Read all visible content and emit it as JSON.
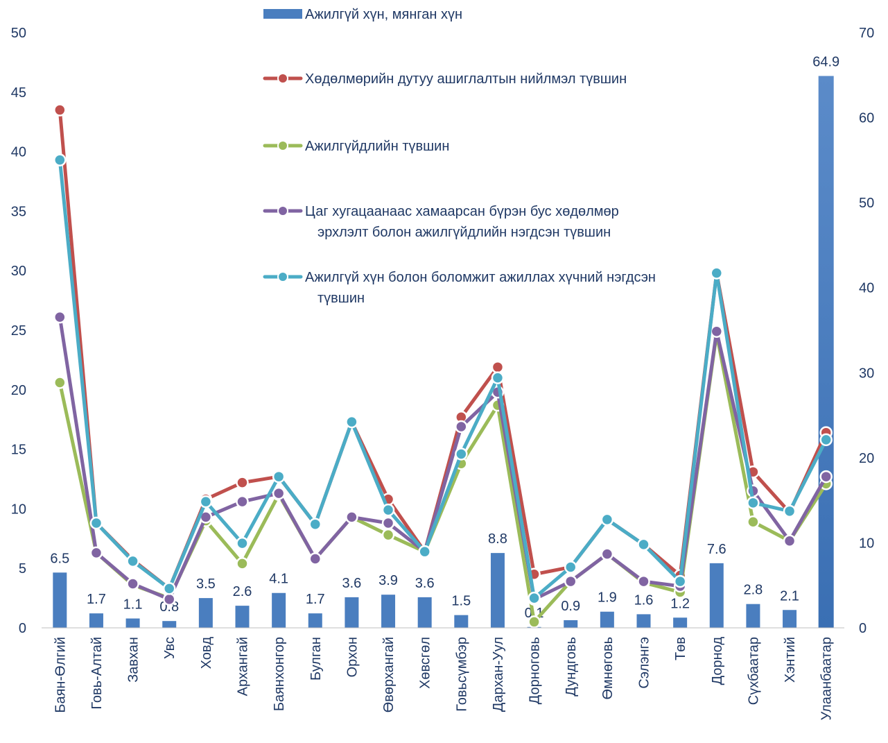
{
  "chart_data": {
    "type": "bar+line",
    "categories": [
      "Баян-Өлгий",
      "Говь-Алтай",
      "Завхан",
      "Увс",
      "Ховд",
      "Архангай",
      "Баянхонгор",
      "Булган",
      "Орхон",
      "Өвөрхангай",
      "Хөвсгөл",
      "Говьсүмбэр",
      "Дархан-Уул",
      "Дорноговь",
      "Дундговь",
      "Өмнөговь",
      "Сэлэнгэ",
      "Төв",
      "Дорнод",
      "Сүхбаатар",
      "Хэнтий",
      "Улаанбаатар"
    ],
    "left_axis": {
      "min": 0,
      "max": 50,
      "step": 5,
      "ticks": [
        "0",
        "5",
        "10",
        "15",
        "20",
        "25",
        "30",
        "35",
        "40",
        "45",
        "50"
      ]
    },
    "right_axis": {
      "min": 0,
      "max": 70,
      "step": 10,
      "ticks": [
        "0",
        "10",
        "20",
        "30",
        "40",
        "50",
        "60",
        "70"
      ]
    },
    "bar_series": {
      "name": "Ажилгүй хүн, мянган хүн",
      "axis": "right",
      "color": "#4a7ebf",
      "values": [
        6.5,
        1.7,
        1.1,
        0.8,
        3.5,
        2.6,
        4.1,
        1.7,
        3.6,
        3.9,
        3.6,
        1.5,
        8.8,
        0.1,
        0.9,
        1.9,
        1.6,
        1.2,
        7.6,
        2.8,
        2.1,
        64.9
      ],
      "labels": [
        "6.5",
        "1.7",
        "1.1",
        "0.8",
        "3.5",
        "2.6",
        "4.1",
        "1.7",
        "3.6",
        "3.9",
        "3.6",
        "1.5",
        "8.8",
        "0.1",
        "0.9",
        "1.9",
        "1.6",
        "1.2",
        "7.6",
        "2.8",
        "2.1",
        "64.9"
      ]
    },
    "line_series": [
      {
        "name": "Хөдөлмөрийн дутуу ашиглалтын нийлмэл түвшин",
        "color": "#c0504d",
        "values": [
          43.5,
          8.8,
          5.7,
          3.3,
          10.8,
          12.2,
          12.7,
          8.7,
          17.3,
          10.8,
          6.4,
          17.7,
          21.9,
          4.5,
          5.1,
          9.1,
          7.0,
          4.4,
          29.8,
          13.1,
          9.7,
          16.4
        ]
      },
      {
        "name": "Ажилгүйдлийн түвшин",
        "color": "#9bbb59",
        "values": [
          20.6,
          6.3,
          3.6,
          2.5,
          9.0,
          5.4,
          11.2,
          5.8,
          9.3,
          7.8,
          6.4,
          13.8,
          18.7,
          0.5,
          3.9,
          6.2,
          3.8,
          3.0,
          24.7,
          8.9,
          7.3,
          12.1
        ]
      },
      {
        "name": "Цаг хугацаанаас хамаарсан бүрэн бус хөдөлмөр эрхлэлт болон ажилгүйдлийн нэгдсэн түвшин",
        "color": "#8064a2",
        "values": [
          26.1,
          6.3,
          3.7,
          2.4,
          9.3,
          10.6,
          11.3,
          5.8,
          9.3,
          8.8,
          6.4,
          16.9,
          19.8,
          2.4,
          3.9,
          6.2,
          3.9,
          3.5,
          24.9,
          11.5,
          7.3,
          12.7
        ]
      },
      {
        "name": "Ажилгүй хүн болон боломжит ажиллах хүчний нэгдсэн түвшин",
        "color": "#4bacc6",
        "values": [
          39.3,
          8.8,
          5.6,
          3.3,
          10.6,
          7.1,
          12.7,
          8.7,
          17.3,
          9.9,
          6.4,
          14.6,
          21.0,
          2.5,
          5.1,
          9.1,
          7.0,
          3.9,
          29.8,
          10.5,
          9.8,
          15.8
        ]
      }
    ],
    "legend": [
      {
        "lines": [
          "Ажилгүй хүн, мянган хүн"
        ]
      },
      {
        "lines": [
          "Хөдөлмөрийн дутуу ашиглалтын нийлмэл түвшин"
        ]
      },
      {
        "lines": [
          "Ажилгүйдлийн түвшин"
        ]
      },
      {
        "lines": [
          "Цаг хугацаанаас хамаарсан бүрэн бус хөдөлмөр",
          "эрхлэлт болон ажилгүйдлийн нэгдсэн түвшин"
        ]
      },
      {
        "lines": [
          "Ажилгүй хүн болон боломжит ажиллах хүчний нэгдсэн",
          "түвшин"
        ]
      }
    ],
    "legend_placement": "top-center",
    "grid": false
  }
}
